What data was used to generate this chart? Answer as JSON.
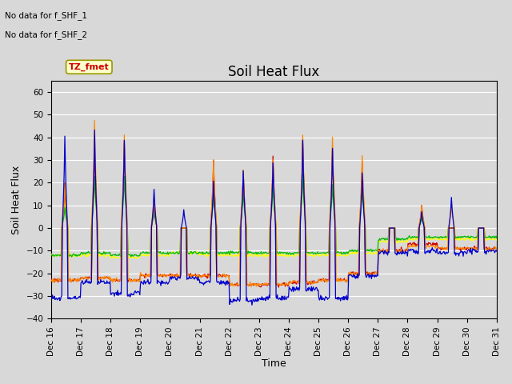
{
  "title": "Soil Heat Flux",
  "ylabel": "Soil Heat Flux",
  "xlabel": "Time",
  "annotations": [
    "No data for f_SHF_1",
    "No data for f_SHF_2"
  ],
  "tz_label": "TZ_fmet",
  "ylim": [
    -40,
    65
  ],
  "yticks": [
    -40,
    -30,
    -20,
    -10,
    0,
    10,
    20,
    30,
    40,
    50,
    60
  ],
  "colors": {
    "SHF1": "#cc0000",
    "SHF2": "#ff8800",
    "SHF3": "#ffff00",
    "SHF4": "#00bb00",
    "SHF5": "#0000cc"
  },
  "xtick_labels": [
    "Dec 16",
    "Dec 17",
    "Dec 18",
    "Dec 19",
    "Dec 20",
    "Dec 21",
    "Dec 22",
    "Dec 23",
    "Dec 24",
    "Dec 25",
    "Dec 26",
    "Dec 27",
    "Dec 28",
    "Dec 29",
    "Dec 30",
    "Dec 31"
  ],
  "background_color": "#d8d8d8",
  "grid_color": "#ffffff",
  "title_fontsize": 12,
  "axis_label_fontsize": 9,
  "tick_fontsize": 7.5
}
